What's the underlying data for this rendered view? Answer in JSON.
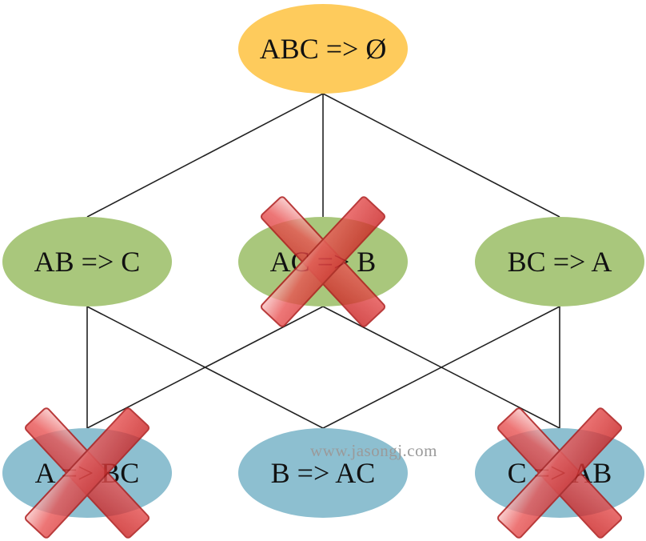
{
  "diagram": {
    "nodes": [
      {
        "id": "abc",
        "label": "ABC => Ø",
        "level": 0,
        "color": "#fecb5c",
        "pruned": false
      },
      {
        "id": "ab",
        "label": "AB => C",
        "level": 1,
        "color": "#a9c77c",
        "pruned": false
      },
      {
        "id": "ac",
        "label": "AC => B",
        "level": 1,
        "color": "#a9c77c",
        "pruned": true
      },
      {
        "id": "bc",
        "label": "BC => A",
        "level": 1,
        "color": "#a9c77c",
        "pruned": false
      },
      {
        "id": "a",
        "label": "A => BC",
        "level": 2,
        "color": "#8dbfd0",
        "pruned": true
      },
      {
        "id": "b",
        "label": "B => AC",
        "level": 2,
        "color": "#8dbfd0",
        "pruned": false
      },
      {
        "id": "c",
        "label": "C => AB",
        "level": 2,
        "color": "#8dbfd0",
        "pruned": true
      }
    ],
    "edges": [
      [
        "abc",
        "ab"
      ],
      [
        "abc",
        "ac"
      ],
      [
        "abc",
        "bc"
      ],
      [
        "ab",
        "a"
      ],
      [
        "ab",
        "b"
      ],
      [
        "ac",
        "a"
      ],
      [
        "ac",
        "c"
      ],
      [
        "bc",
        "b"
      ],
      [
        "bc",
        "c"
      ]
    ],
    "cross_color": "#e23838",
    "watermark": "www.jasongj.com"
  }
}
